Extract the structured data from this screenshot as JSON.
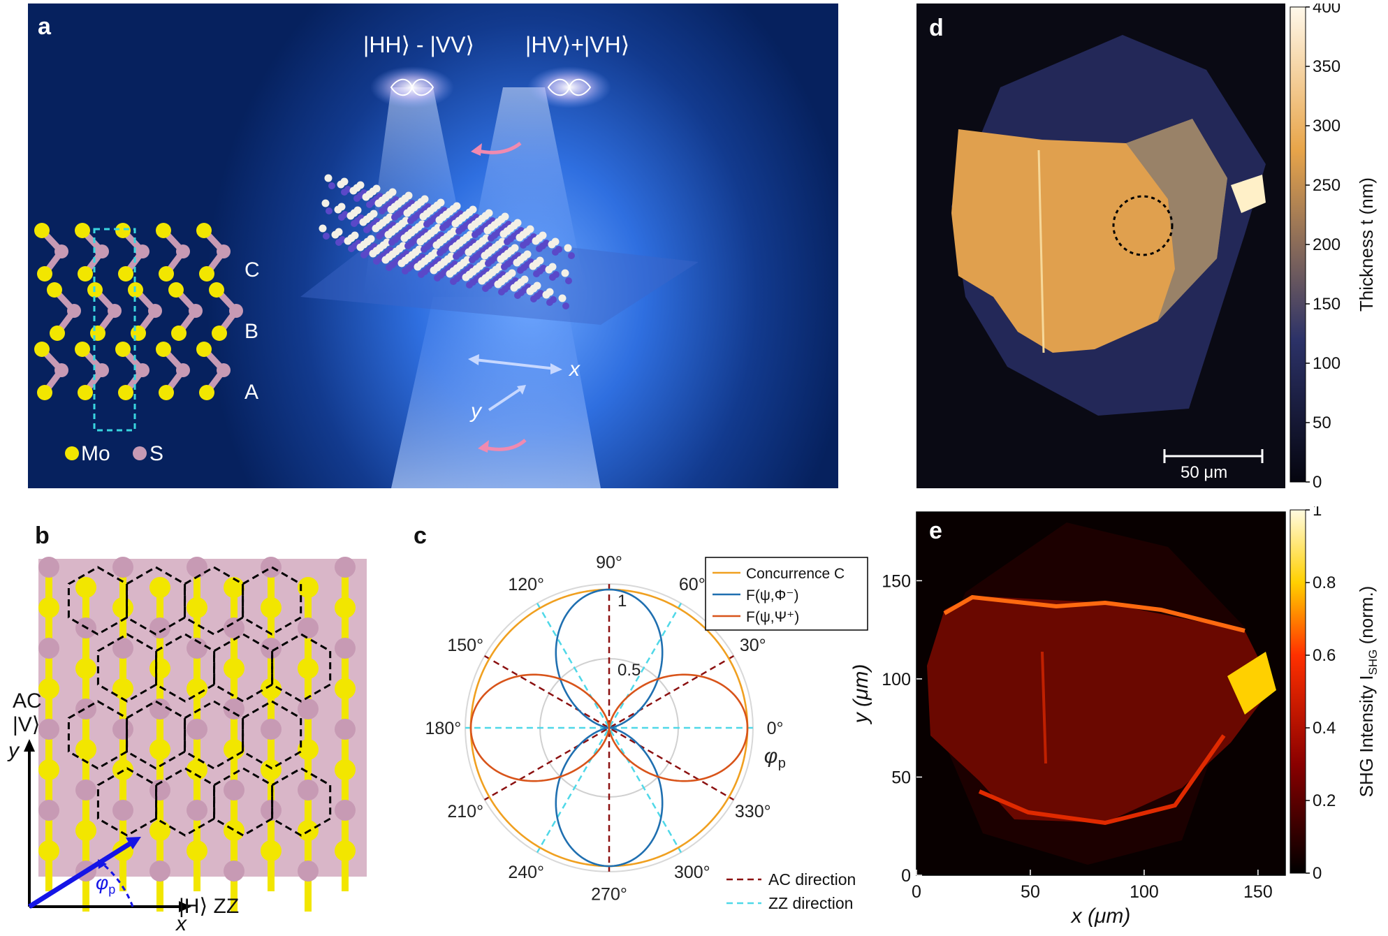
{
  "panel_labels": {
    "a": "a",
    "b": "b",
    "c": "c",
    "d": "d",
    "e": "e"
  },
  "panel_a": {
    "state1": "|HH⟩ - |VV⟩",
    "state2": "|HV⟩+|VH⟩",
    "layers": [
      "C",
      "B",
      "A"
    ],
    "axis_x": "x",
    "axis_y": "y",
    "legend_mo": "Mo",
    "legend_s": "S",
    "colors": {
      "mo": "#f2e600",
      "s": "#c79ab4",
      "box": "#39d6e0"
    }
  },
  "panel_b": {
    "ac_label": "AC",
    "v_label": "|V⟩",
    "h_label": "|H⟩ ZZ",
    "axis_x": "x",
    "axis_y": "y",
    "phi_label": "φ",
    "phi_sub": "p"
  },
  "chart_data": [
    {
      "type": "line",
      "name": "panel c polar",
      "angle_ticks": [
        "0°",
        "30°",
        "60°",
        "90°",
        "120°",
        "150°",
        "180°",
        "210°",
        "240°",
        "270°",
        "300°",
        "330°"
      ],
      "radial_ticks": [
        "0.5",
        "1"
      ],
      "rlim": [
        0,
        1
      ],
      "phi_axis_label": "φ",
      "phi_axis_sub": "p",
      "series": [
        {
          "name": "Concurrence C",
          "function": "1",
          "color": "#f0a020"
        },
        {
          "name": "F(ψ,Φ⁻)",
          "function": "sin^2(phi)",
          "color": "#1f6fb0"
        },
        {
          "name": "F(ψ,Ψ⁺)",
          "function": "cos^2(phi)",
          "color": "#d8541a"
        }
      ],
      "reference_lines": [
        {
          "name": "AC direction",
          "angles_deg": [
            90,
            30,
            150
          ],
          "color": "#8b1010"
        },
        {
          "name": "ZZ direction",
          "angles_deg": [
            0,
            60,
            120
          ],
          "color": "#4fd8e8"
        }
      ]
    },
    {
      "type": "heatmap",
      "name": "panel d",
      "colorbar_label": "Thickness t (nm)",
      "colorbar_ticks": [
        0,
        50,
        100,
        150,
        200,
        250,
        300,
        350,
        400
      ],
      "clim": [
        0,
        400
      ],
      "scalebar": "50 μm",
      "colors": {
        "low": "#05050f",
        "mid": "#2c3268",
        "high": "#e8a54a",
        "top": "#fff8ea"
      }
    },
    {
      "type": "heatmap",
      "name": "panel e",
      "xlabel": "x (μm)",
      "ylabel": "y (μm)",
      "x_ticks": [
        0,
        50,
        100,
        150
      ],
      "y_ticks": [
        0,
        50,
        100,
        150
      ],
      "xlim": [
        0,
        162
      ],
      "ylim": [
        0,
        185
      ],
      "colorbar_label": "SHG Intensity I",
      "colorbar_sub": "SHG",
      "colorbar_suffix": " (norm.)",
      "colorbar_ticks": [
        "0",
        "0.2",
        "0.4",
        "0.6",
        "0.8",
        "1"
      ],
      "clim": [
        0,
        1
      ]
    }
  ]
}
